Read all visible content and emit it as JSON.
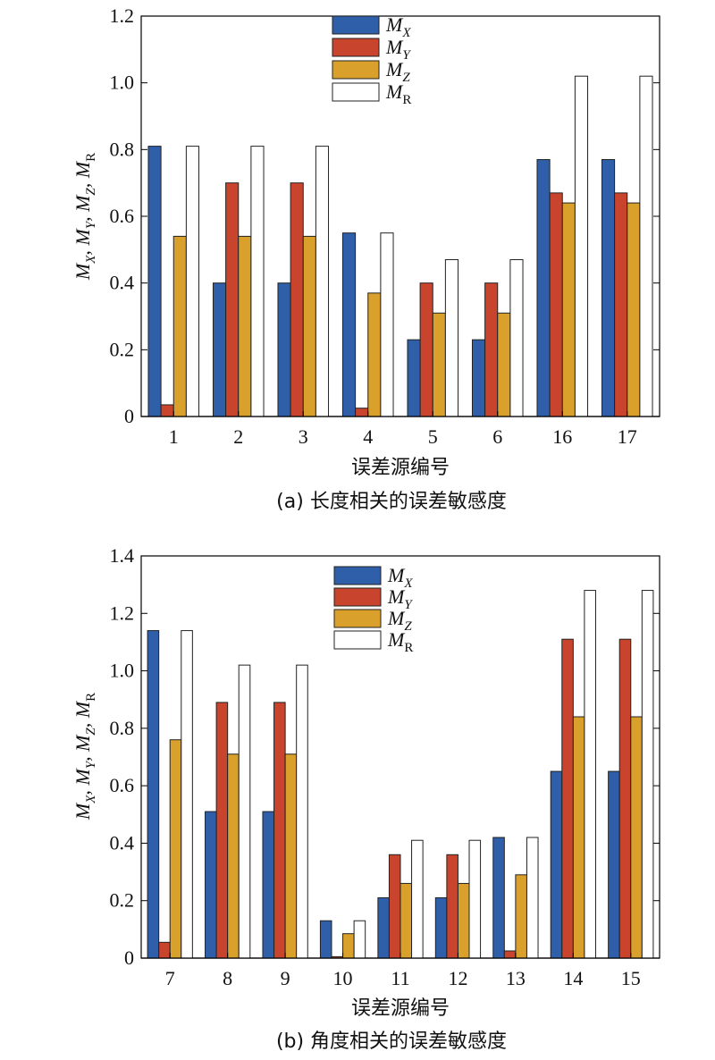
{
  "colors": {
    "MX": "#2f5fa8",
    "MY": "#c8442c",
    "MZ": "#d9a12b",
    "MR": "#ffffff"
  },
  "chart_data": [
    {
      "type": "bar",
      "caption": "(a) 长度相关的误差敏感度",
      "xlabel": "误差源编号",
      "ylabel": "M_X, M_Y, M_Z, M_R",
      "ylim": [
        0,
        1.2
      ],
      "yticks": [
        0,
        0.2,
        0.4,
        0.6,
        0.8,
        1.0,
        1.2
      ],
      "ytick_labels": [
        "0",
        "0.2",
        "0.4",
        "0.6",
        "0.8",
        "1.0",
        "1.2"
      ],
      "categories": [
        "1",
        "2",
        "3",
        "4",
        "5",
        "6",
        "16",
        "17"
      ],
      "legend": [
        {
          "key": "MX",
          "base": "M",
          "sub": "X",
          "sub_italic": true
        },
        {
          "key": "MY",
          "base": "M",
          "sub": "Y",
          "sub_italic": true
        },
        {
          "key": "MZ",
          "base": "M",
          "sub": "Z",
          "sub_italic": true
        },
        {
          "key": "MR",
          "base": "M",
          "sub": "R",
          "sub_italic": false
        }
      ],
      "legend_position": "top-center",
      "series": [
        {
          "name": "MX",
          "values": [
            0.81,
            0.4,
            0.4,
            0.55,
            0.23,
            0.23,
            0.77,
            0.77
          ]
        },
        {
          "name": "MY",
          "values": [
            0.035,
            0.7,
            0.7,
            0.025,
            0.4,
            0.4,
            0.67,
            0.67
          ]
        },
        {
          "name": "MZ",
          "values": [
            0.54,
            0.54,
            0.54,
            0.37,
            0.31,
            0.31,
            0.64,
            0.64
          ]
        },
        {
          "name": "MR",
          "values": [
            0.81,
            0.81,
            0.81,
            0.55,
            0.47,
            0.47,
            1.02,
            1.02
          ]
        }
      ]
    },
    {
      "type": "bar",
      "caption": "(b) 角度相关的误差敏感度",
      "xlabel": "误差源编号",
      "ylabel": "M_X, M_Y, M_Z, M_R",
      "ylim": [
        0,
        1.4
      ],
      "yticks": [
        0,
        0.2,
        0.4,
        0.6,
        0.8,
        1.0,
        1.2,
        1.4
      ],
      "ytick_labels": [
        "0",
        "0.2",
        "0.4",
        "0.6",
        "0.8",
        "1.0",
        "1.2",
        "1.4"
      ],
      "categories": [
        "7",
        "8",
        "9",
        "10",
        "11",
        "12",
        "13",
        "14",
        "15"
      ],
      "legend": [
        {
          "key": "MX",
          "base": "M",
          "sub": "X",
          "sub_italic": true
        },
        {
          "key": "MY",
          "base": "M",
          "sub": "Y",
          "sub_italic": true
        },
        {
          "key": "MZ",
          "base": "M",
          "sub": "Z",
          "sub_italic": true
        },
        {
          "key": "MR",
          "base": "M",
          "sub": "R",
          "sub_italic": false
        }
      ],
      "legend_position": "top-center",
      "series": [
        {
          "name": "MX",
          "values": [
            1.14,
            0.51,
            0.51,
            0.13,
            0.21,
            0.21,
            0.42,
            0.65,
            0.65
          ]
        },
        {
          "name": "MY",
          "values": [
            0.055,
            0.89,
            0.89,
            0.005,
            0.36,
            0.36,
            0.025,
            1.11,
            1.11
          ]
        },
        {
          "name": "MZ",
          "values": [
            0.76,
            0.71,
            0.71,
            0.085,
            0.26,
            0.26,
            0.29,
            0.84,
            0.84
          ]
        },
        {
          "name": "MR",
          "values": [
            1.14,
            1.02,
            1.02,
            0.13,
            0.41,
            0.41,
            0.42,
            1.28,
            1.28
          ]
        }
      ]
    }
  ]
}
